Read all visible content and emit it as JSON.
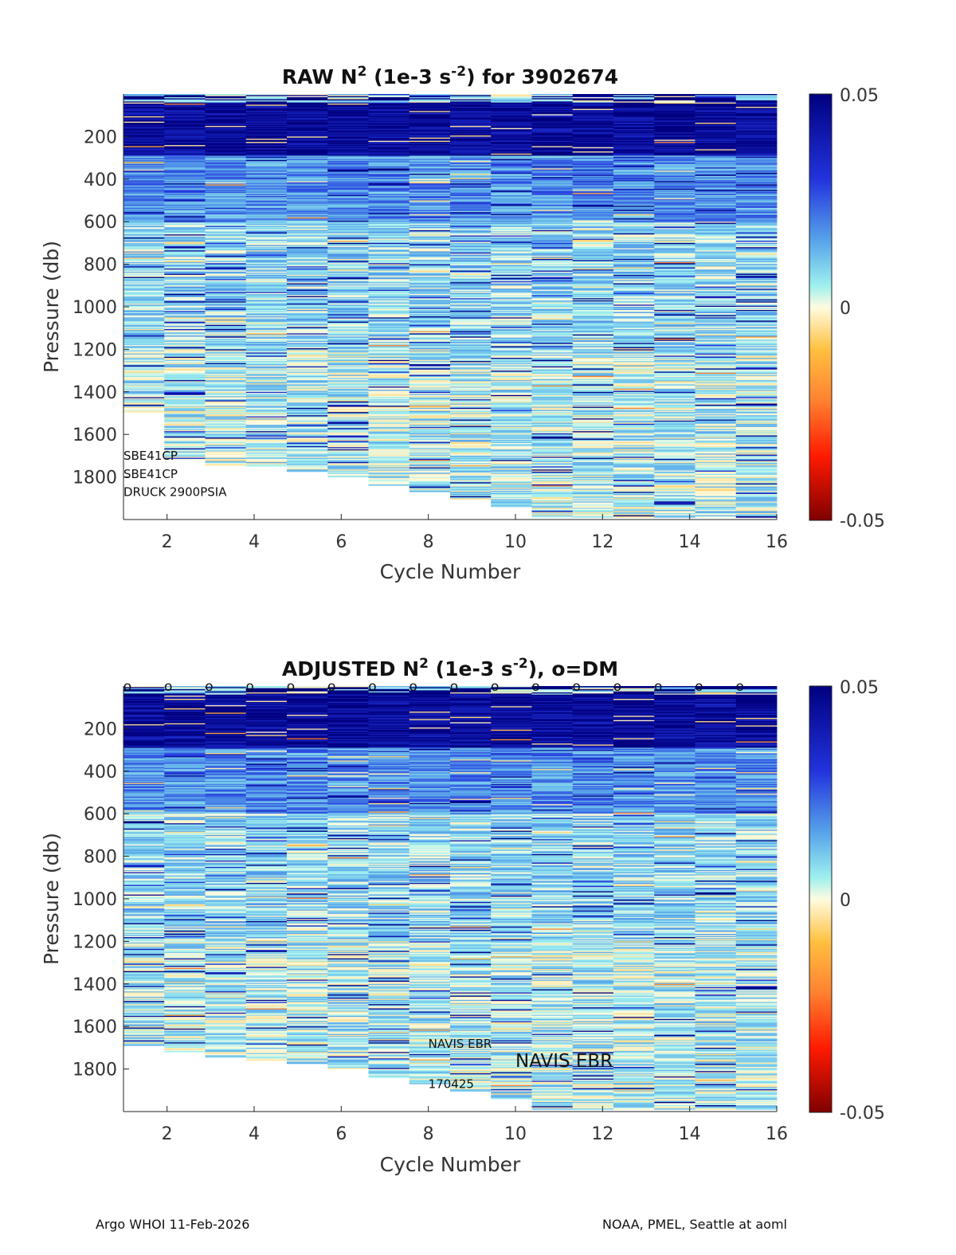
{
  "footer": {
    "left": "Argo WHOI 11-Feb-2026",
    "right": "NOAA, PMEL, Seattle at aoml"
  },
  "chart_data": [
    {
      "type": "heatmap",
      "title": {
        "main": "RAW N",
        "sup1": "2",
        "mid": " (1e-3 s",
        "sup2": "-2",
        "tail": ") for 3902674"
      },
      "xlabel": "Cycle Number",
      "ylabel": "Pressure (db)",
      "xlim": [
        1,
        16
      ],
      "ylim": [
        0,
        2000
      ],
      "y_reversed": true,
      "xticks": [
        2,
        4,
        6,
        8,
        10,
        12,
        14,
        16
      ],
      "yticks": [
        200,
        400,
        600,
        800,
        1000,
        1200,
        1400,
        1600,
        1800
      ],
      "cycles": [
        1,
        2,
        3,
        4,
        5,
        6,
        7,
        8,
        9,
        10,
        11,
        12,
        13,
        14,
        15,
        16
      ],
      "max_pressure": [
        1495,
        1720,
        1745,
        1750,
        1775,
        1800,
        1840,
        1870,
        1905,
        1940,
        1990,
        1990,
        1990,
        1990,
        1990,
        1990
      ],
      "colorbar": {
        "min": -0.05,
        "max": 0.05,
        "ticks": [
          "0.05",
          "0",
          "-0.05"
        ]
      },
      "dm_markers": false,
      "annotations": [
        {
          "text": "SBE41CP",
          "at_cycle": 1,
          "at_pressure": 1720
        },
        {
          "text": "SBE41CP",
          "at_cycle": 1,
          "at_pressure": 1805
        },
        {
          "text": "DRUCK 2900PSIA",
          "at_cycle": 1,
          "at_pressure": 1890
        }
      ]
    },
    {
      "type": "heatmap",
      "title": {
        "main": "ADJUSTED N",
        "sup1": "2",
        "mid": " (1e-3 s",
        "sup2": "-2",
        "tail": "), o=DM"
      },
      "xlabel": "Cycle Number",
      "ylabel": "Pressure (db)",
      "xlim": [
        1,
        16
      ],
      "ylim": [
        0,
        2000
      ],
      "y_reversed": true,
      "xticks": [
        2,
        4,
        6,
        8,
        10,
        12,
        14,
        16
      ],
      "yticks": [
        200,
        400,
        600,
        800,
        1000,
        1200,
        1400,
        1600,
        1800
      ],
      "cycles": [
        1,
        2,
        3,
        4,
        5,
        6,
        7,
        8,
        9,
        10,
        11,
        12,
        13,
        14,
        15,
        16
      ],
      "max_pressure": [
        1690,
        1720,
        1745,
        1760,
        1775,
        1800,
        1840,
        1870,
        1905,
        1940,
        1990,
        1990,
        1990,
        1990,
        1990,
        1990
      ],
      "colorbar": {
        "min": -0.05,
        "max": 0.05,
        "ticks": [
          "0.05",
          "0",
          "-0.05"
        ]
      },
      "dm_markers": true,
      "dm_marker_symbol": "o",
      "annotations": [
        {
          "text": "NAVIS EBR",
          "at_cycle": 8,
          "at_pressure": 1700,
          "size": "small"
        },
        {
          "text": "NAVIS EBR",
          "at_cycle": 10,
          "at_pressure": 1790,
          "size": "large"
        },
        {
          "text": "170425",
          "at_cycle": 8,
          "at_pressure": 1890,
          "size": "small"
        }
      ]
    }
  ]
}
